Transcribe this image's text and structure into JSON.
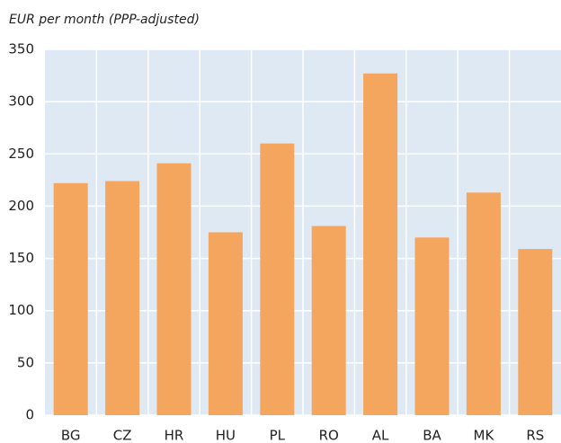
{
  "chart_data": {
    "type": "bar",
    "title": "EUR per month (PPP-adjusted)",
    "categories": [
      "BG",
      "CZ",
      "HR",
      "HU",
      "PL",
      "RO",
      "AL",
      "BA",
      "MK",
      "RS"
    ],
    "values": [
      222,
      224,
      241,
      175,
      260,
      181,
      327,
      170,
      213,
      159
    ],
    "color": "#f4a55e",
    "ylim": [
      0,
      350
    ],
    "yticks": [
      0,
      50,
      100,
      150,
      200,
      250,
      300,
      350
    ],
    "grid": true
  }
}
